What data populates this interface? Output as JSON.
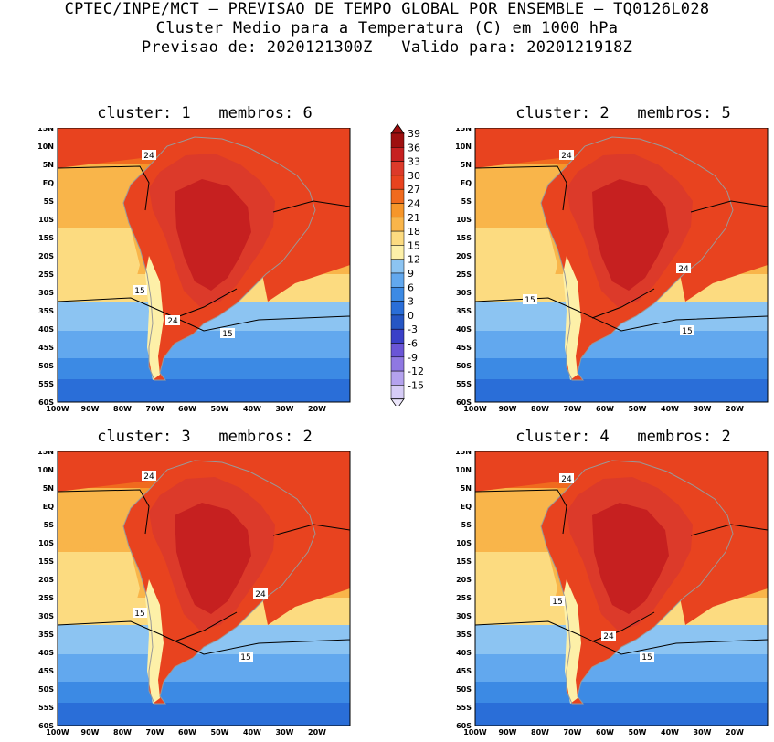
{
  "header": {
    "line1": "CPTEC/INPE/MCT – PREVISAO DE TEMPO GLOBAL POR ENSEMBLE – TQ0126L028",
    "line2": "Cluster Medio para a Temperatura (C) em 1000 hPa",
    "line3": "Previsao de: 2020121300Z   Valido para: 2020121918Z"
  },
  "panels": [
    {
      "title": "cluster: 1   membros: 6",
      "labels": [
        "24",
        "15",
        "24",
        "15"
      ]
    },
    {
      "title": "cluster: 2   membros: 5",
      "labels": [
        "24",
        "24",
        "15",
        "15"
      ]
    },
    {
      "title": "cluster: 3   membros: 2",
      "labels": [
        "24",
        "24",
        "15",
        "15"
      ]
    },
    {
      "title": "cluster: 4   membros: 2",
      "labels": [
        "24",
        "15",
        "24",
        "15"
      ]
    }
  ],
  "lat_labels": [
    "15N",
    "10N",
    "5N",
    "EQ",
    "5S",
    "10S",
    "15S",
    "20S",
    "25S",
    "30S",
    "35S",
    "40S",
    "45S",
    "50S",
    "55S",
    "60S"
  ],
  "lon_labels": [
    "100W",
    "90W",
    "80W",
    "70W",
    "60W",
    "50W",
    "40W",
    "30W",
    "20W"
  ],
  "colorbar": {
    "labels": [
      "39",
      "36",
      "33",
      "30",
      "27",
      "24",
      "21",
      "18",
      "15",
      "12",
      "9",
      "6",
      "3",
      "0",
      "-3",
      "-6",
      "-9",
      "-12",
      "-15"
    ],
    "colors": [
      "#9e0f0f",
      "#c62020",
      "#dc3a2a",
      "#e8431f",
      "#f06a1e",
      "#f6962a",
      "#f9b54a",
      "#fcdb80",
      "#fdf0a8",
      "#8cc4f2",
      "#62a8ee",
      "#3c8ae4",
      "#2a6ed8",
      "#2656c4",
      "#3a40c8",
      "#6a55d6",
      "#8f78e2",
      "#b4a2ee",
      "#d6ccf6"
    ]
  }
}
